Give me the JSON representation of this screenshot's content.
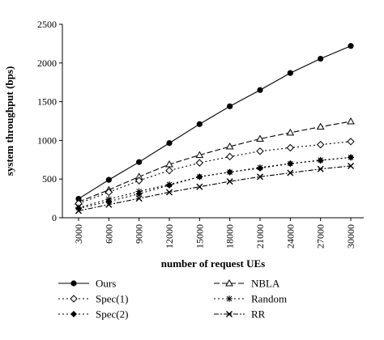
{
  "chart_data": {
    "type": "line",
    "title": "",
    "xlabel": "number of request UEs",
    "ylabel": "system throughput (bps)",
    "x": [
      3000,
      6000,
      9000,
      12000,
      15000,
      18000,
      21000,
      24000,
      27000,
      30000
    ],
    "x_tick_labels": [
      "3000",
      "6000",
      "9000",
      "12000",
      "15000",
      "18000",
      "21000",
      "24000",
      "27000",
      "30000"
    ],
    "ylim": [
      0,
      2500
    ],
    "y_ticks": [
      0,
      500,
      1000,
      1500,
      2000,
      2500
    ],
    "y_tick_labels": [
      "0",
      "500",
      "1000",
      "1500",
      "2000",
      "2500"
    ],
    "grid": false,
    "legend_position": "bottom",
    "series": [
      {
        "name": "Ours",
        "values": [
          245,
          490,
          720,
          965,
          1210,
          1440,
          1650,
          1870,
          2055,
          2220
        ],
        "marker": "filled-circle",
        "dash": "solid"
      },
      {
        "name": "NBLA",
        "values": [
          205,
          360,
          530,
          690,
          810,
          920,
          1020,
          1100,
          1175,
          1245
        ],
        "marker": "open-triangle",
        "dash": "dashed"
      },
      {
        "name": "Spec(1)",
        "values": [
          185,
          330,
          480,
          610,
          710,
          790,
          860,
          905,
          945,
          985
        ],
        "marker": "open-diamond",
        "dash": "dotted"
      },
      {
        "name": "Random",
        "values": [
          130,
          240,
          340,
          430,
          530,
          590,
          650,
          700,
          745,
          780
        ],
        "marker": "star",
        "dash": "dotted"
      },
      {
        "name": "Spec(2)",
        "values": [
          120,
          210,
          310,
          420,
          530,
          590,
          640,
          700,
          740,
          780
        ],
        "marker": "filled-diamond",
        "dash": "dotted"
      },
      {
        "name": "RR",
        "values": [
          90,
          170,
          250,
          330,
          400,
          470,
          530,
          580,
          630,
          670
        ],
        "marker": "cross",
        "dash": "dash-dot"
      }
    ]
  },
  "legend": {
    "left": [
      "Ours",
      "Spec(1)",
      "Spec(2)"
    ],
    "right": [
      "NBLA",
      "Random",
      "RR"
    ]
  },
  "colors": {
    "line": "#000000",
    "background": "#ffffff"
  }
}
